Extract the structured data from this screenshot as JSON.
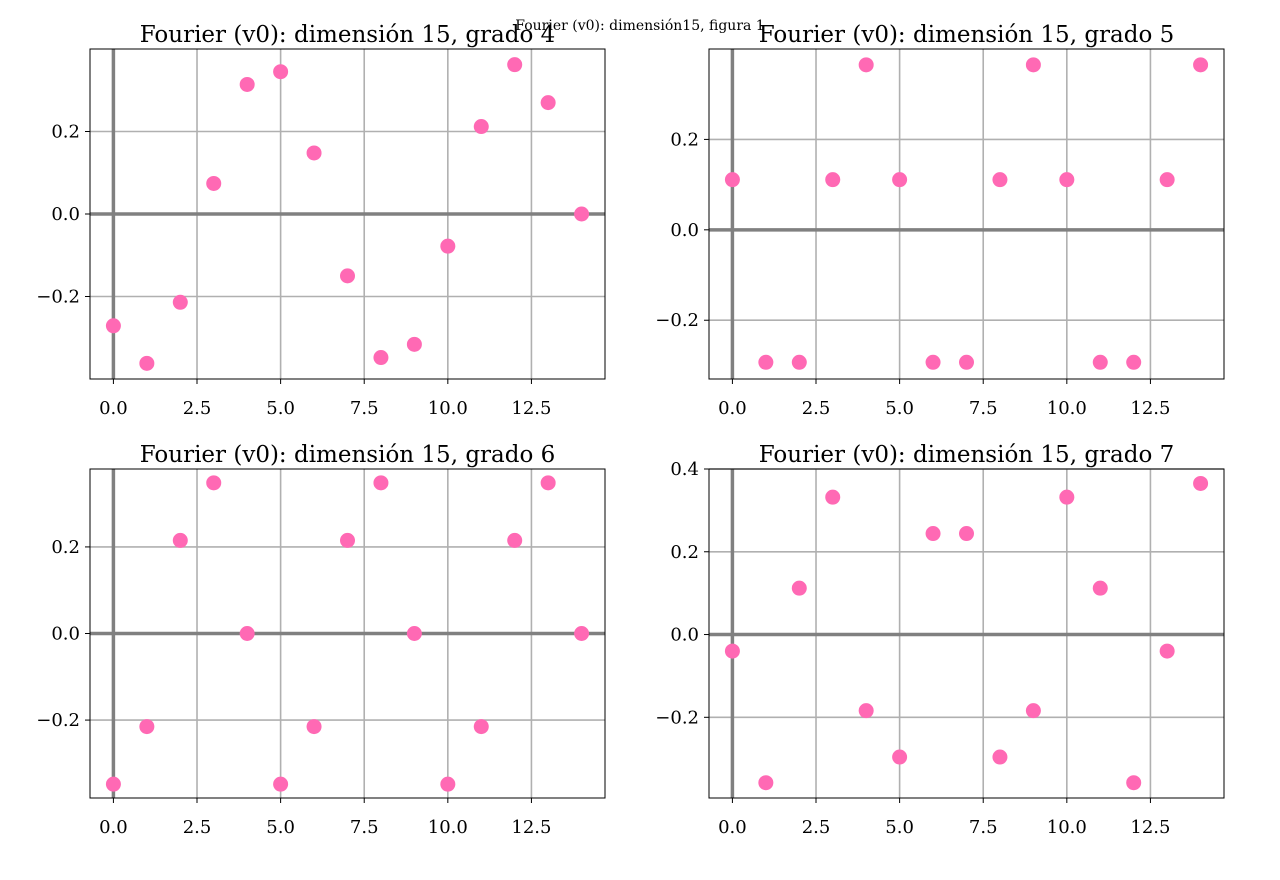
{
  "figure_title": "Fourier (v0): dimensión15, figura 1",
  "chart_data": [
    {
      "type": "scatter",
      "title": "Fourier (v0): dimensión 15, grado 4",
      "x": [
        0,
        1,
        2,
        3,
        4,
        5,
        6,
        7,
        8,
        9,
        10,
        11,
        12,
        13,
        14
      ],
      "y": [
        -0.271,
        -0.362,
        -0.214,
        0.074,
        0.314,
        0.345,
        0.148,
        -0.15,
        -0.348,
        -0.316,
        -0.078,
        0.212,
        0.362,
        0.27,
        0.0
      ],
      "xlim": [
        -0.7,
        14.7
      ],
      "ylim": [
        -0.4,
        0.4
      ],
      "xticks": [
        0.0,
        2.5,
        5.0,
        7.5,
        10.0,
        12.5
      ],
      "xtick_labels": [
        "0.0",
        "2.5",
        "5.0",
        "7.5",
        "10.0",
        "12.5"
      ],
      "yticks": [
        -0.2,
        0.0,
        0.2
      ],
      "ytick_labels": [
        "−0.2",
        "0.0",
        "0.2"
      ],
      "grid": true,
      "color": "#ff69b4"
    },
    {
      "type": "scatter",
      "title": "Fourier (v0): dimensión 15, grado 5",
      "x": [
        0,
        1,
        2,
        3,
        4,
        5,
        6,
        7,
        8,
        9,
        10,
        11,
        12,
        13,
        14
      ],
      "y": [
        0.111,
        -0.293,
        -0.293,
        0.111,
        0.365,
        0.111,
        -0.293,
        -0.293,
        0.111,
        0.365,
        0.111,
        -0.293,
        -0.293,
        0.111,
        0.365
      ],
      "xlim": [
        -0.7,
        14.7
      ],
      "ylim": [
        -0.33,
        0.4
      ],
      "xticks": [
        0.0,
        2.5,
        5.0,
        7.5,
        10.0,
        12.5
      ],
      "xtick_labels": [
        "0.0",
        "2.5",
        "5.0",
        "7.5",
        "10.0",
        "12.5"
      ],
      "yticks": [
        -0.2,
        0.0,
        0.2
      ],
      "ytick_labels": [
        "−0.2",
        "0.0",
        "0.2"
      ],
      "grid": true,
      "color": "#ff69b4"
    },
    {
      "type": "scatter",
      "title": "Fourier (v0): dimensión 15, grado 6",
      "x": [
        0,
        1,
        2,
        3,
        4,
        5,
        6,
        7,
        8,
        9,
        10,
        11,
        12,
        13,
        14
      ],
      "y": [
        -0.348,
        -0.215,
        0.215,
        0.348,
        0.0,
        -0.348,
        -0.215,
        0.215,
        0.348,
        0.0,
        -0.348,
        -0.215,
        0.215,
        0.348,
        0.0
      ],
      "xlim": [
        -0.7,
        14.7
      ],
      "ylim": [
        -0.38,
        0.38
      ],
      "xticks": [
        0.0,
        2.5,
        5.0,
        7.5,
        10.0,
        12.5
      ],
      "xtick_labels": [
        "0.0",
        "2.5",
        "5.0",
        "7.5",
        "10.0",
        "12.5"
      ],
      "yticks": [
        -0.2,
        0.0,
        0.2
      ],
      "ytick_labels": [
        "−0.2",
        "0.0",
        "0.2"
      ],
      "grid": true,
      "color": "#ff69b4"
    },
    {
      "type": "scatter",
      "title": "Fourier (v0): dimensión 15, grado 7",
      "x": [
        0,
        1,
        2,
        3,
        4,
        5,
        6,
        7,
        8,
        9,
        10,
        11,
        12,
        13,
        14
      ],
      "y": [
        -0.04,
        -0.358,
        0.112,
        0.332,
        -0.184,
        -0.296,
        0.244,
        0.244,
        -0.296,
        -0.184,
        0.332,
        0.112,
        -0.358,
        -0.04,
        0.365
      ],
      "xlim": [
        -0.7,
        14.7
      ],
      "ylim": [
        -0.395,
        0.4
      ],
      "xticks": [
        0.0,
        2.5,
        5.0,
        7.5,
        10.0,
        12.5
      ],
      "xtick_labels": [
        "0.0",
        "2.5",
        "5.0",
        "7.5",
        "10.0",
        "12.5"
      ],
      "yticks": [
        -0.2,
        0.0,
        0.2,
        0.4
      ],
      "ytick_labels": [
        "−0.2",
        "0.0",
        "0.2",
        "0.4"
      ],
      "grid": true,
      "color": "#ff69b4"
    }
  ]
}
